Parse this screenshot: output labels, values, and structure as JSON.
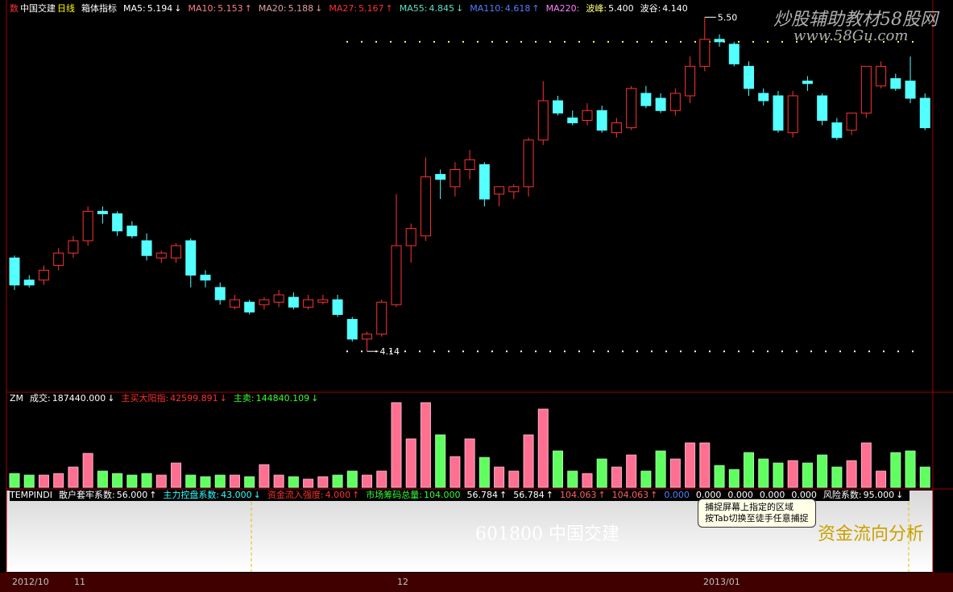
{
  "header": {
    "market_icon": "数",
    "stock": "中国交建",
    "period": "日线",
    "indicator": "箱体指标",
    "mas": [
      {
        "name": "MA5:",
        "value": "5.194",
        "arrow": "↓",
        "color": "#ffffff"
      },
      {
        "name": "MA10:",
        "value": "5.153",
        "arrow": "↑",
        "color": "#ff8080"
      },
      {
        "name": "MA20:",
        "value": "5.188",
        "arrow": "↓",
        "color": "#e0a0a0"
      },
      {
        "name": "MA27:",
        "value": "5.167",
        "arrow": "↑",
        "color": "#ff3030"
      },
      {
        "name": "MA55:",
        "value": "4.845",
        "arrow": "↓",
        "color": "#60e0c0"
      },
      {
        "name": "MA110:",
        "value": "4.618",
        "arrow": "↑",
        "color": "#5080ff"
      },
      {
        "name": "MA220:",
        "value": "",
        "arrow": "",
        "color": "#ff80ff"
      }
    ],
    "peak": {
      "name": "波峰:",
      "value": 5.4,
      "label": "5.400"
    },
    "trough": {
      "name": "波谷:",
      "value": 4.14,
      "label": "4.140"
    }
  },
  "watermark": [
    "炒股辅助教材58股网",
    "www.58Gu.com"
  ],
  "chart_data": {
    "type": "candlestick",
    "ylim": [
      3.98,
      5.57
    ],
    "up_color": "#ff3232",
    "down_color": "#54ffff",
    "ohlc": [
      [
        4.52,
        4.53,
        4.39,
        4.41
      ],
      [
        4.43,
        4.45,
        4.4,
        4.41
      ],
      [
        4.43,
        4.49,
        4.41,
        4.47
      ],
      [
        4.49,
        4.56,
        4.47,
        4.54
      ],
      [
        4.54,
        4.61,
        4.52,
        4.59
      ],
      [
        4.59,
        4.73,
        4.57,
        4.71
      ],
      [
        4.71,
        4.73,
        4.66,
        4.7
      ],
      [
        4.7,
        4.71,
        4.61,
        4.63
      ],
      [
        4.65,
        4.67,
        4.6,
        4.61
      ],
      [
        4.59,
        4.62,
        4.51,
        4.53
      ],
      [
        4.52,
        4.55,
        4.5,
        4.54
      ],
      [
        4.52,
        4.58,
        4.5,
        4.57
      ],
      [
        4.59,
        4.6,
        4.4,
        4.45
      ],
      [
        4.45,
        4.47,
        4.4,
        4.43
      ],
      [
        4.4,
        4.42,
        4.33,
        4.35
      ],
      [
        4.32,
        4.37,
        4.31,
        4.35
      ],
      [
        4.34,
        4.35,
        4.29,
        4.3
      ],
      [
        4.33,
        4.36,
        4.31,
        4.35
      ],
      [
        4.34,
        4.39,
        4.32,
        4.37
      ],
      [
        4.36,
        4.38,
        4.31,
        4.32
      ],
      [
        4.32,
        4.37,
        4.31,
        4.35
      ],
      [
        4.34,
        4.37,
        4.33,
        4.35
      ],
      [
        4.35,
        4.37,
        4.28,
        4.29
      ],
      [
        4.27,
        4.28,
        4.18,
        4.19
      ],
      [
        4.19,
        4.22,
        4.14,
        4.21
      ],
      [
        4.21,
        4.35,
        4.2,
        4.34
      ],
      [
        4.33,
        4.78,
        4.32,
        4.57
      ],
      [
        4.57,
        4.66,
        4.5,
        4.64
      ],
      [
        4.61,
        4.93,
        4.59,
        4.85
      ],
      [
        4.86,
        4.88,
        4.76,
        4.84
      ],
      [
        4.81,
        4.91,
        4.77,
        4.88
      ],
      [
        4.88,
        4.96,
        4.84,
        4.92
      ],
      [
        4.9,
        4.91,
        4.73,
        4.76
      ],
      [
        4.78,
        4.81,
        4.73,
        4.81
      ],
      [
        4.79,
        4.82,
        4.76,
        4.81
      ],
      [
        4.81,
        5.01,
        4.77,
        5.0
      ],
      [
        5.0,
        5.24,
        4.98,
        5.16
      ],
      [
        5.16,
        5.18,
        5.1,
        5.11
      ],
      [
        5.09,
        5.12,
        5.06,
        5.07
      ],
      [
        5.08,
        5.15,
        5.06,
        5.12
      ],
      [
        5.12,
        5.14,
        5.03,
        5.04
      ],
      [
        5.03,
        5.09,
        5.01,
        5.07
      ],
      [
        5.05,
        5.22,
        5.04,
        5.21
      ],
      [
        5.19,
        5.22,
        5.13,
        5.14
      ],
      [
        5.17,
        5.19,
        5.11,
        5.12
      ],
      [
        5.12,
        5.21,
        5.1,
        5.19
      ],
      [
        5.18,
        5.34,
        5.15,
        5.3
      ],
      [
        5.3,
        5.5,
        5.28,
        5.41
      ],
      [
        5.41,
        5.43,
        5.38,
        5.4
      ],
      [
        5.39,
        5.4,
        5.3,
        5.31
      ],
      [
        5.3,
        5.32,
        5.18,
        5.21
      ],
      [
        5.19,
        5.21,
        5.14,
        5.16
      ],
      [
        5.18,
        5.2,
        5.03,
        5.04
      ],
      [
        5.03,
        5.2,
        5.01,
        5.18
      ],
      [
        5.24,
        5.26,
        5.2,
        5.23
      ],
      [
        5.18,
        5.19,
        5.06,
        5.08
      ],
      [
        5.07,
        5.09,
        5.0,
        5.01
      ],
      [
        5.04,
        5.11,
        5.02,
        5.11
      ],
      [
        5.11,
        5.3,
        5.09,
        5.3
      ],
      [
        5.22,
        5.32,
        5.21,
        5.3
      ],
      [
        5.25,
        5.27,
        5.2,
        5.21
      ],
      [
        5.24,
        5.34,
        5.15,
        5.17
      ],
      [
        5.17,
        5.19,
        5.04,
        5.05
      ]
    ],
    "annotations": [
      {
        "value": 5.5,
        "label": "5.50"
      },
      {
        "value": 4.14,
        "label": "4.14"
      }
    ]
  },
  "volume_panel": {
    "title": "ZM",
    "items": [
      {
        "name": "成交:",
        "value": "187440.000",
        "arrow": "↓",
        "color": "#ffffff"
      },
      {
        "name": "主买大阳指:",
        "value": "42599.891",
        "arrow": "↓",
        "color": "#ff3030"
      },
      {
        "name": "主卖:",
        "value": "144840.109",
        "arrow": "↓",
        "color": "#30ff30"
      }
    ],
    "chart": {
      "type": "bar",
      "ylim": [
        0,
        115
      ],
      "values": [
        17,
        15,
        15,
        17,
        25,
        42,
        20,
        17,
        15,
        17,
        15,
        30,
        15,
        13,
        15,
        15,
        13,
        28,
        15,
        13,
        10,
        13,
        15,
        20,
        15,
        20,
        105,
        60,
        105,
        65,
        38,
        60,
        37,
        25,
        20,
        65,
        97,
        45,
        20,
        17,
        35,
        25,
        40,
        20,
        45,
        35,
        55,
        55,
        27,
        22,
        43,
        35,
        30,
        33,
        30,
        40,
        25,
        33,
        55,
        20,
        43,
        45,
        25
      ]
    }
  },
  "indicator_panel": {
    "title": "TEMPINDI",
    "items": [
      {
        "name": "散户套牢系数:",
        "value": "56.000",
        "arrow": "↑",
        "color": "#ffffff"
      },
      {
        "name": "主力控盘系数:",
        "value": "43.000",
        "arrow": "↓",
        "color": "#30ffff"
      },
      {
        "name": "资金流入强度:",
        "value": "4.000",
        "arrow": "↑",
        "color": "#ff3030"
      },
      {
        "name": "市场筹码总量:",
        "value": "104.000",
        "arrow": "",
        "color": "#30ff30"
      },
      {
        "name": "",
        "value": "56.784",
        "arrow": "↑",
        "color": "#ffffff"
      },
      {
        "name": "",
        "value": "56.784",
        "arrow": "↑",
        "color": "#ffffff"
      },
      {
        "name": "",
        "value": "104.063",
        "arrow": "↑",
        "color": "#ff6060"
      },
      {
        "name": "",
        "value": "104.063",
        "arrow": "↑",
        "color": "#ff6060"
      },
      {
        "name": "",
        "value": "0.000",
        "arrow": "",
        "color": "#5080ff"
      },
      {
        "name": "",
        "value": "0.000",
        "arrow": "",
        "color": "#ffffff"
      },
      {
        "name": "",
        "value": "0.000",
        "arrow": "",
        "color": "#ffffff"
      },
      {
        "name": "",
        "value": "0.000",
        "arrow": "",
        "color": "#ffffff"
      },
      {
        "name": "",
        "value": "0.000",
        "arrow": "",
        "color": "#ffffff"
      },
      {
        "name": "风险系数:",
        "value": "95.000",
        "arrow": "↓",
        "color": "#ffffff"
      }
    ]
  },
  "overlay": {
    "stock_label": "601800 中国交建",
    "tooltip": [
      "捕捉屏幕上指定的区域",
      "按Tab切换至徒手任意捕捉"
    ],
    "flow": "资金流向分析"
  },
  "dates": [
    "2012/10",
    "11",
    "12",
    "2013/01"
  ]
}
